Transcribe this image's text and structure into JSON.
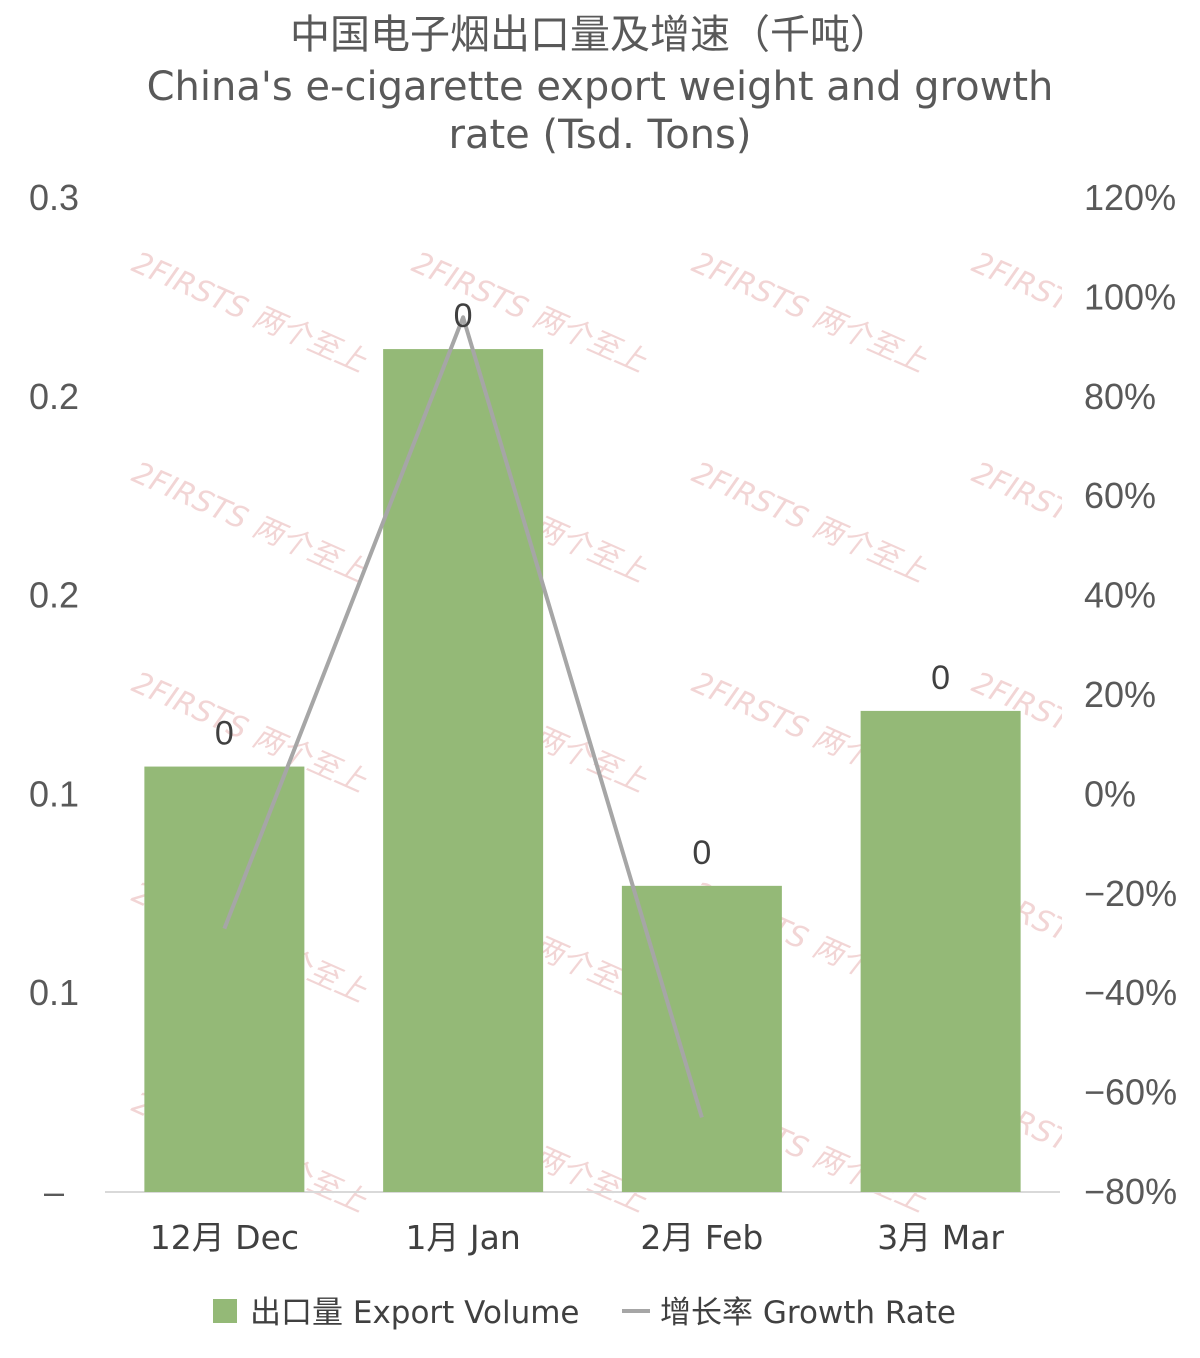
{
  "chart_data": {
    "type": "bar",
    "title": "中国电子烟出口量及增速（千吨）",
    "subtitle_lines": [
      "China's e-cigarette export weight and growth",
      "rate (Tsd. Tons)"
    ],
    "categories": [
      "12月 Dec",
      "1月 Jan",
      "2月 Feb",
      "3月 Mar"
    ],
    "series": [
      {
        "name": "出口量 Export Volume",
        "type": "bar",
        "axis": "left",
        "color": "#94b977",
        "values": [
          0.107,
          0.212,
          0.077,
          0.121
        ],
        "data_labels": [
          "0",
          "0",
          "0",
          "0"
        ]
      },
      {
        "name": "增长率 Growth Rate",
        "type": "line",
        "axis": "right",
        "color": "#a6a6a6",
        "values": [
          -27,
          96,
          -65,
          null
        ]
      }
    ],
    "y_left": {
      "ylim": [
        0,
        0.25
      ],
      "ticks": [
        0,
        0.05,
        0.1,
        0.15,
        0.2,
        0.25
      ],
      "tick_labels": [
        "–",
        "0.1",
        "0.1",
        "0.2",
        "0.2",
        "0.3"
      ]
    },
    "y_right": {
      "ylim": [
        -80,
        120
      ],
      "ticks": [
        -80,
        -60,
        -40,
        -20,
        0,
        20,
        40,
        60,
        80,
        100,
        120
      ],
      "tick_labels": [
        "−80%",
        "−60%",
        "−40%",
        "−20%",
        "0%",
        "20%",
        "40%",
        "60%",
        "80%",
        "100%",
        "120%"
      ]
    },
    "grid": false,
    "legend_position": "bottom",
    "watermark": "2FIRSTS 两个至上"
  }
}
